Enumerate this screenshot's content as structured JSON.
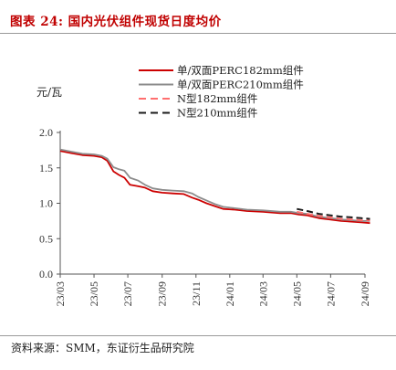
{
  "figure": {
    "title": "图表 24:  国内光伏组件现货日度均价",
    "source": "资料来源：SMM，东证衍生品研究院"
  },
  "chart_data": {
    "type": "line",
    "ylabel": "元/瓦",
    "ylim": [
      0.0,
      2.0
    ],
    "yticks": [
      "0.0",
      "0.5",
      "1.0",
      "1.5",
      "2.0"
    ],
    "x_range": [
      "2023-03",
      "2024-09"
    ],
    "xticks": [
      "23/03",
      "23/05",
      "23/07",
      "23/09",
      "23/11",
      "24/01",
      "24/03",
      "24/05",
      "24/07",
      "24/09"
    ],
    "grid": false,
    "legend_position": "top-right",
    "series": [
      {
        "name": "单/双面PERC182mm组件",
        "color": "#cc0000",
        "style": "solid",
        "points": [
          [
            "2023-03-01",
            1.74
          ],
          [
            "2023-03-20",
            1.71
          ],
          [
            "2023-04-10",
            1.68
          ],
          [
            "2023-05-01",
            1.67
          ],
          [
            "2023-05-15",
            1.65
          ],
          [
            "2023-05-25",
            1.6
          ],
          [
            "2023-06-05",
            1.45
          ],
          [
            "2023-06-15",
            1.4
          ],
          [
            "2023-06-25",
            1.36
          ],
          [
            "2023-07-05",
            1.26
          ],
          [
            "2023-07-20",
            1.24
          ],
          [
            "2023-08-01",
            1.22
          ],
          [
            "2023-08-15",
            1.17
          ],
          [
            "2023-09-01",
            1.15
          ],
          [
            "2023-09-20",
            1.14
          ],
          [
            "2023-10-10",
            1.13
          ],
          [
            "2023-10-25",
            1.08
          ],
          [
            "2023-11-05",
            1.05
          ],
          [
            "2023-11-20",
            1.0
          ],
          [
            "2023-12-05",
            0.96
          ],
          [
            "2023-12-20",
            0.92
          ],
          [
            "2024-01-10",
            0.91
          ],
          [
            "2024-02-01",
            0.89
          ],
          [
            "2024-03-01",
            0.88
          ],
          [
            "2024-04-01",
            0.86
          ],
          [
            "2024-04-20",
            0.86
          ],
          [
            "2024-05-05",
            0.84
          ],
          [
            "2024-05-20",
            0.83
          ],
          [
            "2024-06-10",
            0.79
          ],
          [
            "2024-07-01",
            0.77
          ],
          [
            "2024-07-20",
            0.75
          ],
          [
            "2024-08-10",
            0.74
          ],
          [
            "2024-08-25",
            0.73
          ],
          [
            "2024-09-10",
            0.72
          ]
        ]
      },
      {
        "name": "单/双面PERC210mm组件",
        "color": "#8c8c8c",
        "style": "solid",
        "points": [
          [
            "2023-03-01",
            1.76
          ],
          [
            "2023-03-20",
            1.73
          ],
          [
            "2023-04-10",
            1.7
          ],
          [
            "2023-05-01",
            1.69
          ],
          [
            "2023-05-15",
            1.67
          ],
          [
            "2023-05-25",
            1.63
          ],
          [
            "2023-06-05",
            1.51
          ],
          [
            "2023-06-15",
            1.48
          ],
          [
            "2023-06-25",
            1.46
          ],
          [
            "2023-07-05",
            1.36
          ],
          [
            "2023-07-20",
            1.32
          ],
          [
            "2023-08-01",
            1.26
          ],
          [
            "2023-08-15",
            1.21
          ],
          [
            "2023-09-01",
            1.19
          ],
          [
            "2023-09-20",
            1.18
          ],
          [
            "2023-10-10",
            1.17
          ],
          [
            "2023-10-25",
            1.14
          ],
          [
            "2023-11-05",
            1.09
          ],
          [
            "2023-11-20",
            1.04
          ],
          [
            "2023-12-05",
            0.99
          ],
          [
            "2023-12-20",
            0.95
          ],
          [
            "2024-01-10",
            0.93
          ],
          [
            "2024-02-01",
            0.91
          ],
          [
            "2024-03-01",
            0.9
          ],
          [
            "2024-04-01",
            0.88
          ],
          [
            "2024-04-20",
            0.88
          ],
          [
            "2024-05-05",
            0.86
          ],
          [
            "2024-05-20",
            0.85
          ],
          [
            "2024-06-10",
            0.81
          ],
          [
            "2024-07-01",
            0.79
          ],
          [
            "2024-07-20",
            0.77
          ],
          [
            "2024-08-10",
            0.76
          ],
          [
            "2024-08-25",
            0.75
          ],
          [
            "2024-09-10",
            0.75
          ]
        ]
      },
      {
        "name": "N型182mm组件",
        "color": "#ff6f6f",
        "style": "dashed",
        "points": [
          [
            "2024-05-01",
            0.88
          ],
          [
            "2024-05-20",
            0.85
          ],
          [
            "2024-06-10",
            0.82
          ],
          [
            "2024-07-01",
            0.8
          ],
          [
            "2024-07-20",
            0.78
          ],
          [
            "2024-08-10",
            0.77
          ],
          [
            "2024-08-25",
            0.76
          ],
          [
            "2024-09-10",
            0.76
          ]
        ]
      },
      {
        "name": "N型210mm组件",
        "color": "#1a1a1a",
        "style": "dashed",
        "points": [
          [
            "2024-05-01",
            0.92
          ],
          [
            "2024-05-20",
            0.89
          ],
          [
            "2024-06-10",
            0.85
          ],
          [
            "2024-07-01",
            0.83
          ],
          [
            "2024-07-20",
            0.81
          ],
          [
            "2024-08-10",
            0.8
          ],
          [
            "2024-08-25",
            0.79
          ],
          [
            "2024-09-10",
            0.78
          ]
        ]
      }
    ]
  }
}
